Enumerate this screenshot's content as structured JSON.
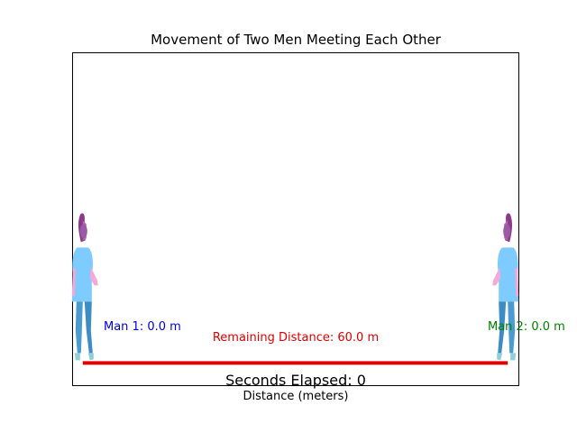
{
  "chart_data": {
    "type": "line",
    "title": "Movement of Two Men Meeting Each Other",
    "xlabel": "Distance (meters)",
    "ylabel": "",
    "xlim": [
      -1.5,
      61.5
    ],
    "ylim": [
      -0.3,
      4.2
    ],
    "grid": false,
    "show_ticks": false,
    "series": [
      {
        "name": "Remaining Distance",
        "color": "#e00000",
        "x": [
          0,
          60
        ],
        "y": [
          0,
          0
        ]
      }
    ],
    "men": [
      {
        "position": 0,
        "color": "#0000e0",
        "label": "Man 1: 0.0 m",
        "facing": "right"
      },
      {
        "position": 60,
        "color": "#008000",
        "label": "Man 2: 0.0 m",
        "facing": "left"
      }
    ],
    "remaining_label": "Remaining Distance: 60.0 m",
    "elapsed_label": "Seconds Elapsed: 0"
  },
  "icons": {
    "man": "standing-person-icon"
  }
}
